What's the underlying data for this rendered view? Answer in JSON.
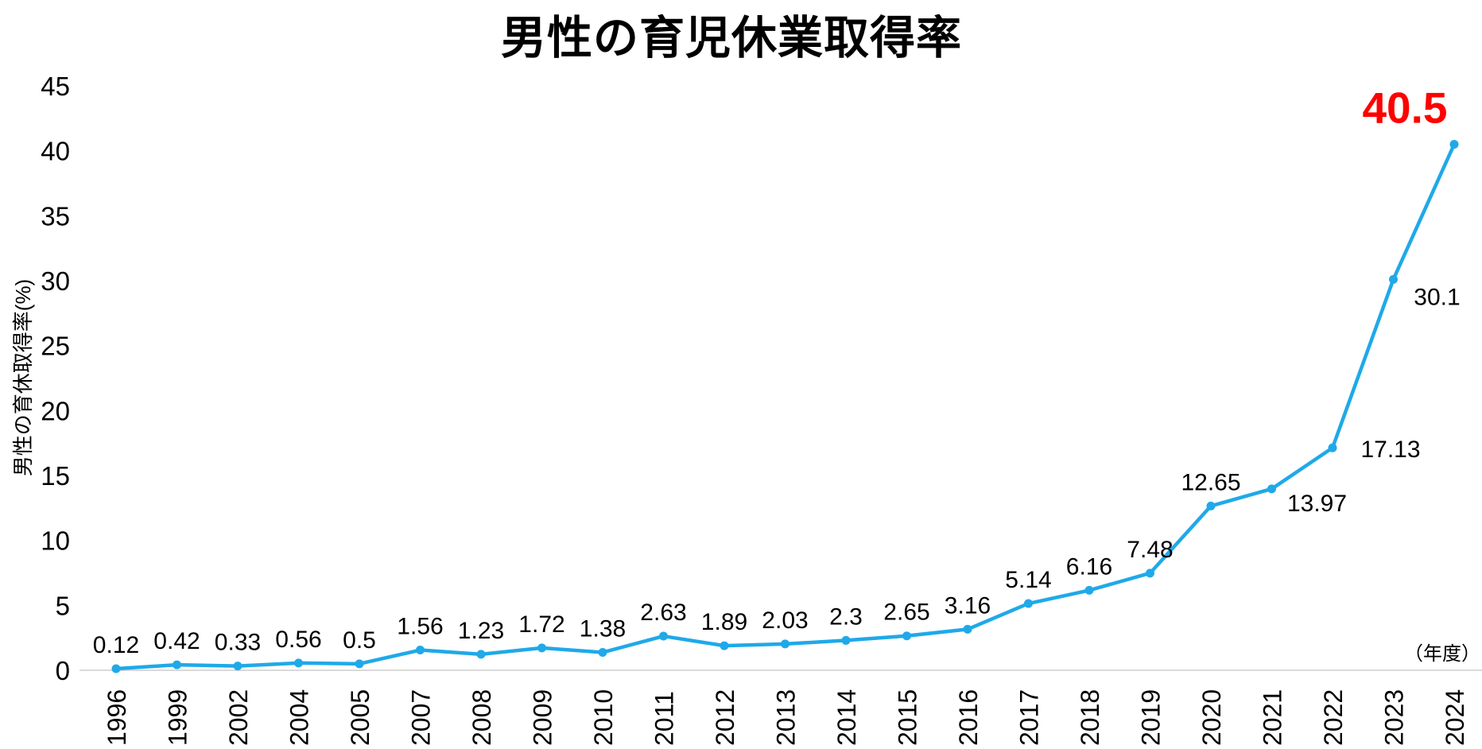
{
  "title": "男性の育児休業取得率",
  "colors": {
    "line": "#1FA9E9",
    "marker": "#1FA9E9",
    "highlight": "#FF0000",
    "text": "#000000",
    "axis_line": "#D9D9D9"
  },
  "chart_data": {
    "type": "line",
    "title": "男性の育児休業取得率",
    "categories": [
      "1996",
      "1999",
      "2002",
      "2004",
      "2005",
      "2007",
      "2008",
      "2009",
      "2010",
      "2011",
      "2012",
      "2013",
      "2014",
      "2015",
      "2016",
      "2017",
      "2018",
      "2019",
      "2020",
      "2021",
      "2022",
      "2023",
      "2024"
    ],
    "values": [
      0.12,
      0.42,
      0.33,
      0.56,
      0.5,
      1.56,
      1.23,
      1.72,
      1.38,
      2.63,
      1.89,
      2.03,
      2.3,
      2.65,
      3.16,
      5.14,
      6.16,
      7.48,
      12.65,
      13.97,
      17.13,
      30.1,
      40.5
    ],
    "data_labels": [
      "0.12",
      "0.42",
      "0.33",
      "0.56",
      "0.5",
      "1.56",
      "1.23",
      "1.72",
      "1.38",
      "2.63",
      "1.89",
      "2.03",
      "2.3",
      "2.65",
      "3.16",
      "5.14",
      "6.16",
      "7.48",
      "12.65",
      "13.97",
      "17.13",
      "30.1",
      "40.5"
    ],
    "ylabel": "男性の育休取得率(%)",
    "xaxis_note": "（年度）",
    "ylim": [
      0,
      45
    ],
    "ytick_step": 5,
    "yticks": [
      "0",
      "5",
      "10",
      "15",
      "20",
      "25",
      "30",
      "35",
      "40",
      "45"
    ],
    "grid": false,
    "legend": "none",
    "highlight_last_index": 22,
    "label_offsets": {
      "19": [
        57,
        28
      ],
      "20": [
        73,
        12
      ],
      "21": [
        55,
        32
      ],
      "22": [
        -62,
        -27
      ]
    }
  }
}
